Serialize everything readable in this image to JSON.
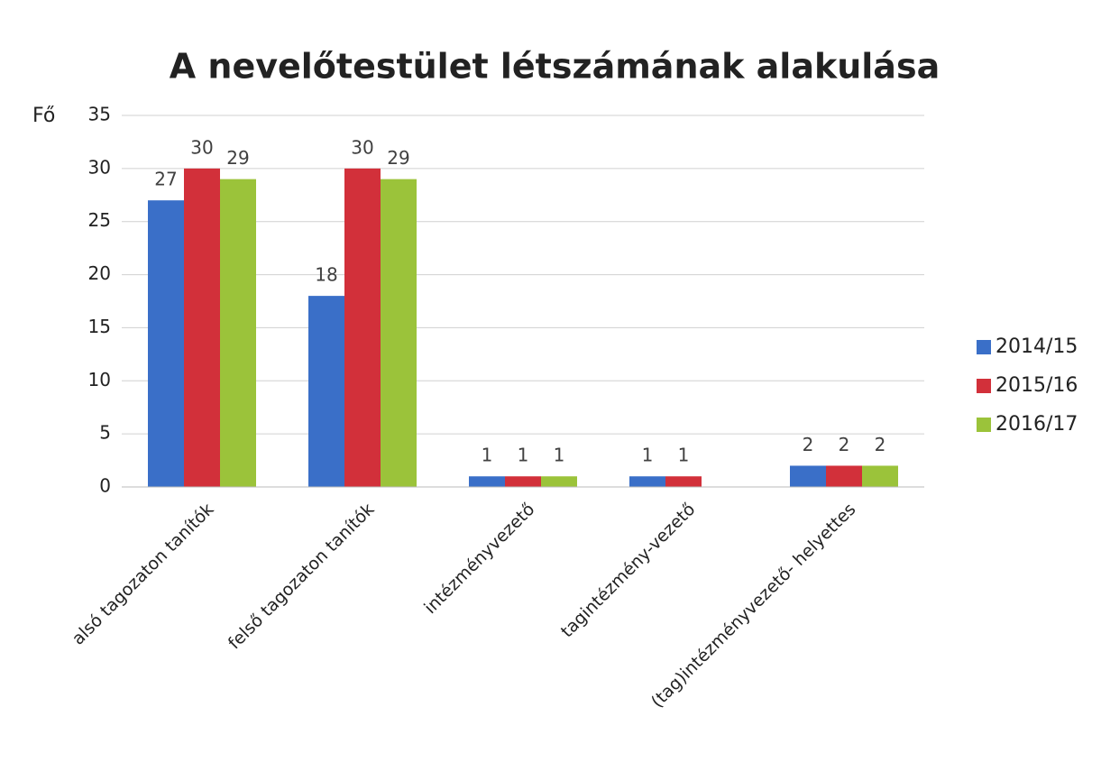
{
  "chart_data": {
    "type": "bar",
    "title": "A nevelőtestület létszámának alakulása",
    "y_label": "Fő",
    "categories": [
      "alsó tagozaton tanítók",
      "felső tagozaton tanítók",
      "intézményvezető",
      "tagintézmény-vezető",
      "(tag)intézményvezető- helyettes"
    ],
    "series": [
      {
        "name": "2014/15",
        "color": "#3a6fc8",
        "values": [
          27,
          18,
          1,
          1,
          2
        ]
      },
      {
        "name": "2015/16",
        "color": "#d2303a",
        "values": [
          30,
          30,
          1,
          1,
          2
        ]
      },
      {
        "name": "2016/17",
        "color": "#9bc33a",
        "values": [
          29,
          29,
          1,
          null,
          2
        ]
      }
    ],
    "ylim": [
      0,
      35
    ],
    "yticks": [
      0,
      5,
      10,
      15,
      20,
      25,
      30,
      35
    ],
    "grid": true,
    "legend": "right"
  }
}
